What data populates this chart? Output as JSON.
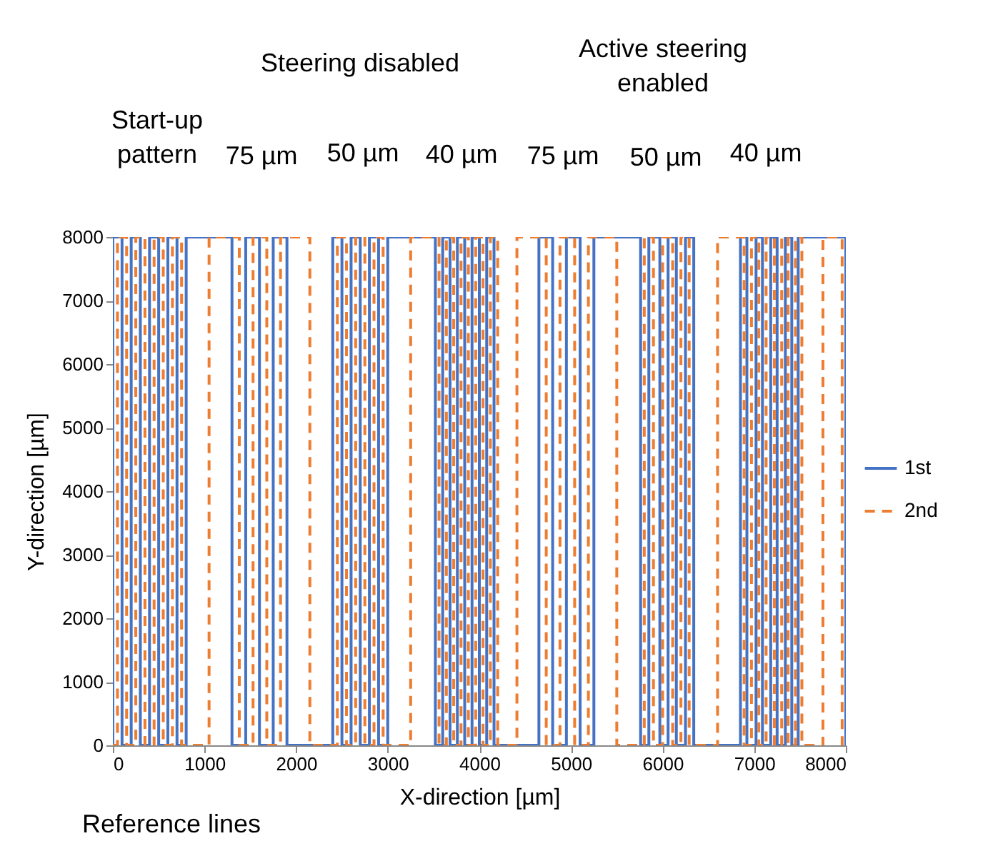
{
  "chart_data": {
    "type": "line",
    "xlabel": "X-direction [µm]",
    "ylabel": "Y-direction [µm]",
    "xlim": [
      0,
      8000
    ],
    "xticks": [
      0,
      1000,
      2000,
      3000,
      4000,
      5000,
      6000,
      7000,
      8000
    ],
    "ylim": [
      0,
      8000
    ],
    "yticks": [
      0,
      1000,
      2000,
      3000,
      4000,
      5000,
      6000,
      7000,
      8000
    ],
    "grid": false,
    "legend": "right",
    "marker": "none",
    "annotations": [
      "Start-up\npattern",
      "75 µm",
      "50 µm",
      "40 µm",
      "75 µm",
      "50 µm",
      "40 µm",
      "Steering disabled",
      "Active steering\nenabled",
      "Reference lines"
    ],
    "series": [
      {
        "name": "1st",
        "color": "#4472c4",
        "line_style": "solid",
        "x": [
          0,
          0,
          100,
          100,
          200,
          200,
          300,
          300,
          400,
          400,
          500,
          500,
          600,
          600,
          700,
          700,
          800,
          800,
          1300,
          1300,
          1450,
          1450,
          1600,
          1600,
          1750,
          1750,
          1900,
          1900,
          2400,
          2400,
          2500,
          2500,
          2600,
          2600,
          2700,
          2700,
          2800,
          2800,
          2900,
          2900,
          3000,
          3000,
          3520,
          3520,
          3600,
          3600,
          3680,
          3680,
          3760,
          3760,
          3840,
          3840,
          3920,
          3920,
          4000,
          4000,
          4080,
          4080,
          4160,
          4160,
          4650,
          4650,
          4800,
          4800,
          4950,
          4950,
          5100,
          5100,
          5250,
          5250,
          5760,
          5760,
          5850,
          5850,
          5970,
          5970,
          6060,
          6060,
          6150,
          6150,
          6250,
          6250,
          6340,
          6340,
          6850,
          6850,
          6920,
          6920,
          7020,
          7020,
          7090,
          7090,
          7180,
          7180,
          7250,
          7250,
          7340,
          7340,
          7410,
          7410,
          7480,
          7480,
          8000,
          8000
        ],
        "values": [
          0,
          8000,
          8000,
          0,
          0,
          8000,
          8000,
          0,
          0,
          8000,
          8000,
          0,
          0,
          8000,
          8000,
          0,
          0,
          8000,
          8000,
          0,
          0,
          8000,
          8000,
          0,
          0,
          8000,
          8000,
          0,
          0,
          8000,
          8000,
          0,
          0,
          8000,
          8000,
          0,
          0,
          8000,
          8000,
          0,
          0,
          8000,
          8000,
          0,
          0,
          8000,
          8000,
          0,
          0,
          8000,
          8000,
          0,
          0,
          8000,
          8000,
          0,
          0,
          8000,
          8000,
          0,
          0,
          8000,
          8000,
          0,
          0,
          8000,
          8000,
          0,
          0,
          8000,
          8000,
          0,
          0,
          8000,
          8000,
          0,
          0,
          8000,
          8000,
          0,
          0,
          8000,
          8000,
          0,
          0,
          8000,
          8000,
          0,
          0,
          8000,
          8000,
          0,
          0,
          8000,
          8000,
          0,
          0,
          8000,
          8000,
          0,
          0,
          8000,
          8000,
          0
        ]
      },
      {
        "name": "2nd",
        "color": "#ed7d31",
        "line_style": "dashed",
        "x": [
          0,
          50,
          50,
          150,
          150,
          250,
          250,
          350,
          350,
          450,
          450,
          550,
          550,
          650,
          650,
          750,
          750,
          1050,
          1050,
          1380,
          1380,
          1530,
          1530,
          1680,
          1680,
          1830,
          1830,
          2150,
          2150,
          2450,
          2450,
          2550,
          2550,
          2650,
          2650,
          2750,
          2750,
          2850,
          2850,
          2950,
          2950,
          3250,
          3250,
          3560,
          3560,
          3640,
          3640,
          3720,
          3720,
          3800,
          3800,
          3880,
          3880,
          3960,
          3960,
          4040,
          4040,
          4120,
          4120,
          4200,
          4200,
          4410,
          4410,
          4730,
          4730,
          4880,
          4880,
          5040,
          5040,
          5190,
          5190,
          5500,
          5500,
          5800,
          5800,
          5900,
          5900,
          6000,
          6000,
          6110,
          6110,
          6200,
          6200,
          6290,
          6290,
          6600,
          6600,
          6890,
          6890,
          6970,
          6970,
          7050,
          7050,
          7130,
          7130,
          7220,
          7220,
          7300,
          7300,
          7370,
          7370,
          7450,
          7450,
          7520,
          7520,
          7750,
          7750,
          7960,
          7960
        ],
        "values": [
          0,
          0,
          8000,
          8000,
          0,
          0,
          8000,
          8000,
          0,
          0,
          8000,
          8000,
          0,
          0,
          8000,
          8000,
          0,
          0,
          8000,
          8000,
          0,
          0,
          8000,
          8000,
          0,
          0,
          8000,
          8000,
          0,
          0,
          8000,
          8000,
          0,
          0,
          8000,
          8000,
          0,
          0,
          8000,
          8000,
          0,
          0,
          8000,
          8000,
          0,
          0,
          8000,
          8000,
          0,
          0,
          8000,
          8000,
          0,
          0,
          8000,
          8000,
          0,
          0,
          8000,
          8000,
          0,
          0,
          8000,
          8000,
          0,
          0,
          8000,
          8000,
          0,
          0,
          8000,
          8000,
          0,
          0,
          8000,
          8000,
          0,
          0,
          8000,
          8000,
          0,
          0,
          8000,
          8000,
          0,
          0,
          8000,
          8000,
          0,
          0,
          8000,
          8000,
          0,
          0,
          8000,
          8000,
          0,
          0,
          8000,
          8000,
          0,
          0,
          8000,
          8000,
          0,
          0,
          8000,
          8000,
          0
        ]
      }
    ]
  }
}
